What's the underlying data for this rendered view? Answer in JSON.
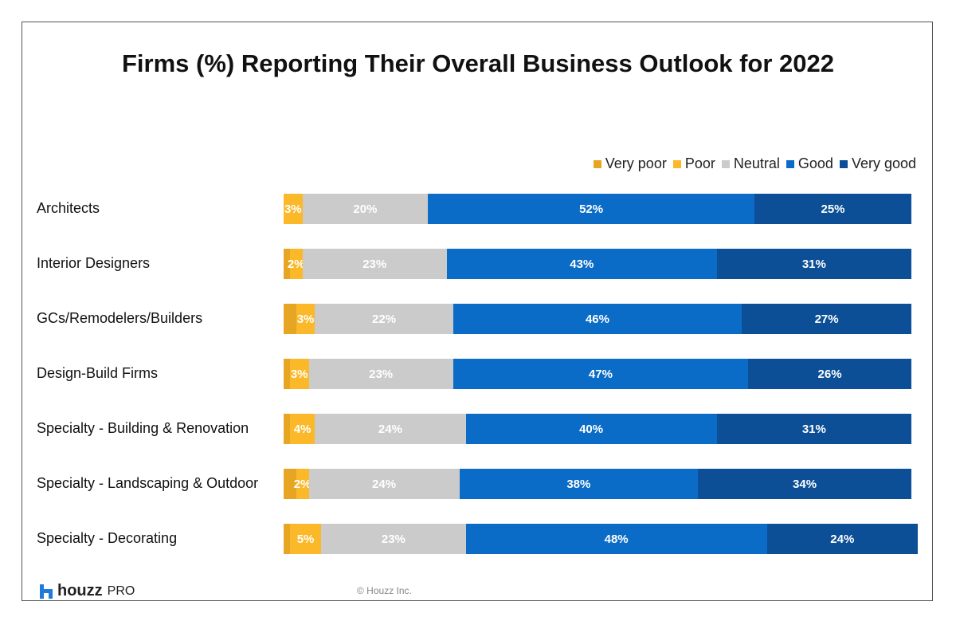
{
  "chart_data": {
    "type": "bar",
    "orientation": "horizontal",
    "stacked": true,
    "title": "Firms (%) Reporting Their Overall Business Outlook for 2022",
    "categories": [
      "Architects",
      "Interior Designers",
      "GCs/Remodelers/Builders",
      "Design-Build Firms",
      "Specialty - Building & Renovation",
      "Specialty - Landscaping & Outdoor",
      "Specialty - Decorating"
    ],
    "series": [
      {
        "name": "Very poor",
        "color": "#e6a623",
        "values": [
          0,
          1,
          2,
          1,
          1,
          2,
          1
        ],
        "labeled": false
      },
      {
        "name": "Poor",
        "color": "#fbb829",
        "values": [
          3,
          2,
          3,
          3,
          4,
          2,
          5
        ],
        "labeled": true
      },
      {
        "name": "Neutral",
        "color": "#cbcbcb",
        "values": [
          20,
          23,
          22,
          23,
          24,
          24,
          23
        ],
        "labeled": true
      },
      {
        "name": "Good",
        "color": "#0b6cc7",
        "values": [
          52,
          43,
          46,
          47,
          40,
          38,
          48
        ],
        "labeled": true
      },
      {
        "name": "Very good",
        "color": "#0c4f97",
        "values": [
          25,
          31,
          27,
          26,
          31,
          34,
          24
        ],
        "labeled": true
      }
    ],
    "xlim": [
      0,
      100
    ],
    "legend": "top-right",
    "grid": false
  },
  "footer": {
    "logo": "houzz",
    "logo_suffix": "PRO",
    "copyright": "© Houzz Inc.",
    "logo_color": "#1f7ad9"
  }
}
